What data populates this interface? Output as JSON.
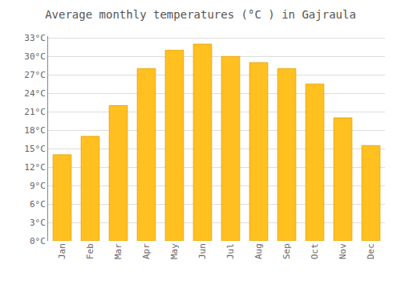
{
  "chart_data": {
    "type": "bar",
    "title": "Average monthly temperatures (°C ) in Gajraula",
    "categories": [
      "Jan",
      "Feb",
      "Mar",
      "Apr",
      "May",
      "Jun",
      "Jul",
      "Aug",
      "Sep",
      "Oct",
      "Nov",
      "Dec"
    ],
    "values": [
      14,
      17,
      22,
      28,
      31,
      32,
      30,
      29,
      28,
      25.5,
      20,
      15.5
    ],
    "color": "#FFC020",
    "ylim": [
      0,
      33.3
    ],
    "yticks": [
      {
        "value": 0,
        "label": "0°C"
      },
      {
        "value": 3,
        "label": "3°C"
      },
      {
        "value": 6,
        "label": "6°C"
      },
      {
        "value": 9,
        "label": "9°C"
      },
      {
        "value": 12,
        "label": "12°C"
      },
      {
        "value": 15,
        "label": "15°C"
      },
      {
        "value": 18,
        "label": "18°C"
      },
      {
        "value": 21,
        "label": "21°C"
      },
      {
        "value": 24,
        "label": "24°C"
      },
      {
        "value": 27,
        "label": "27°C"
      },
      {
        "value": 30,
        "label": "30°C"
      },
      {
        "value": 33,
        "label": "33°C"
      }
    ],
    "grid": true
  }
}
